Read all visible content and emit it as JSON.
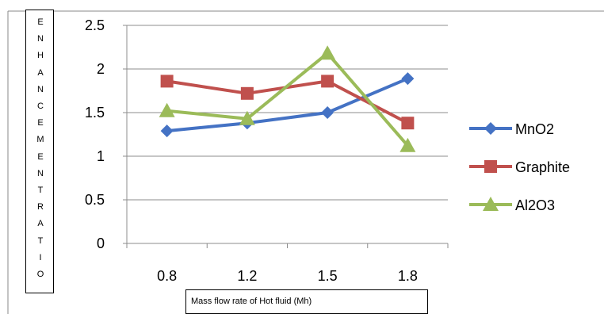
{
  "chart_data": {
    "type": "line",
    "categories": [
      "0.8",
      "1.2",
      "1.5",
      "1.8"
    ],
    "series": [
      {
        "name": "MnO2",
        "values": [
          1.29,
          1.38,
          1.5,
          1.89
        ],
        "color": "#4472C4",
        "marker": "diamond"
      },
      {
        "name": "Graphite",
        "values": [
          1.86,
          1.72,
          1.86,
          1.38
        ],
        "color": "#C0504D",
        "marker": "square"
      },
      {
        "name": "Al2O3",
        "values": [
          1.52,
          1.43,
          2.18,
          1.12
        ],
        "color": "#9BBB59",
        "marker": "triangle"
      }
    ],
    "ylabel": "ENHANCEMENTRATIO",
    "xlabel": "Mass flow rate of Hot fluid (Mh)",
    "ylim": [
      0,
      2.5
    ],
    "yticks": [
      "0",
      "0.5",
      "1",
      "1.5",
      "2",
      "2.5"
    ],
    "grid": true,
    "legend": "right"
  }
}
